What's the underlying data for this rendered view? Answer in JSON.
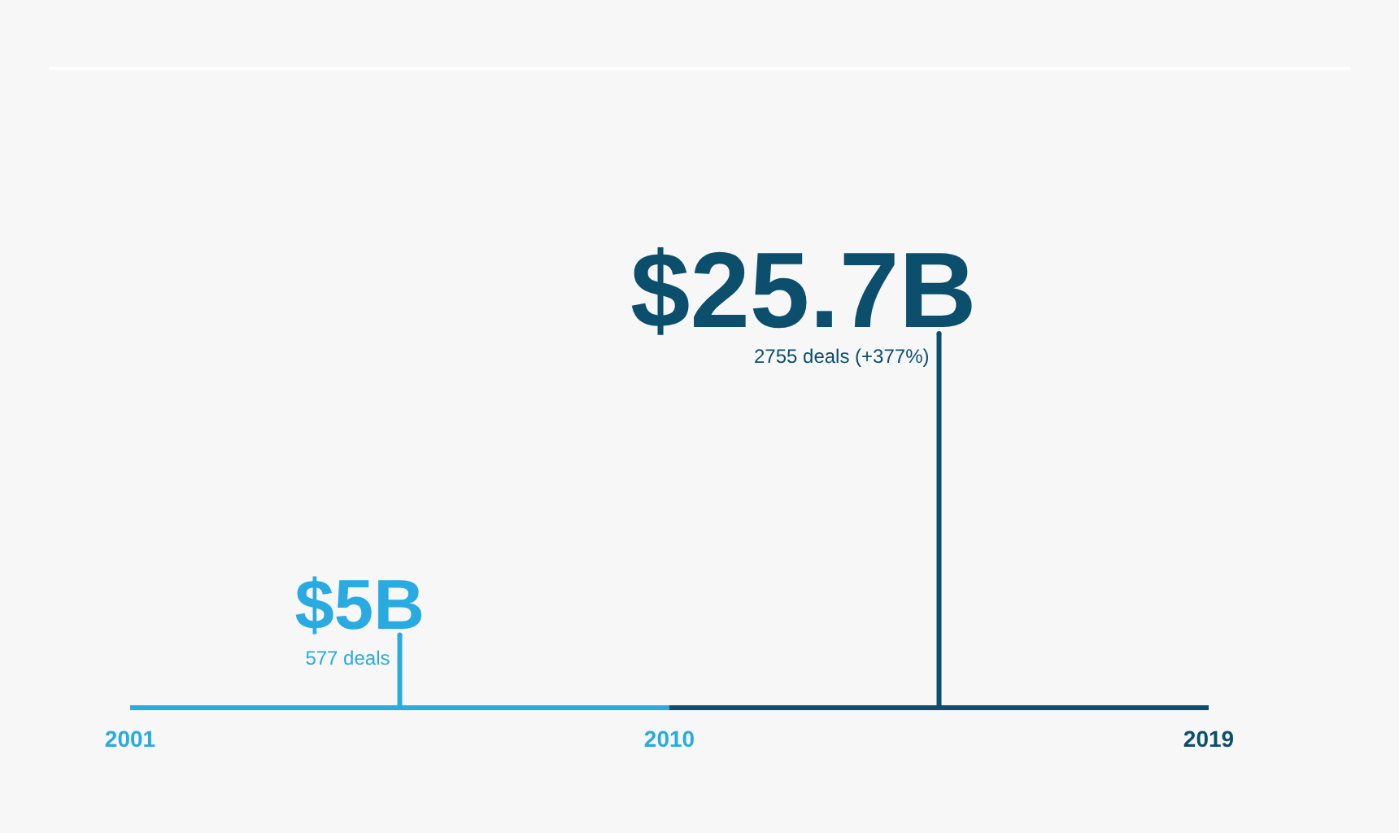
{
  "chart_data": {
    "type": "lollipop",
    "x": [
      2005.5,
      2014.5
    ],
    "values": [
      5,
      25.7
    ],
    "colors": [
      "#29abe2",
      "#0b4f6c"
    ],
    "value_labels": [
      "$5B",
      "$25.7B"
    ],
    "xlim": [
      2001,
      2019
    ],
    "xticks": [
      2001,
      2010,
      2019
    ],
    "annotations": [
      {
        "text": "577 deals",
        "x": 2005.5,
        "y": 5
      },
      {
        "text": "2755 deals (+377%)",
        "x": 2014.5,
        "y": 25.7
      }
    ]
  }
}
